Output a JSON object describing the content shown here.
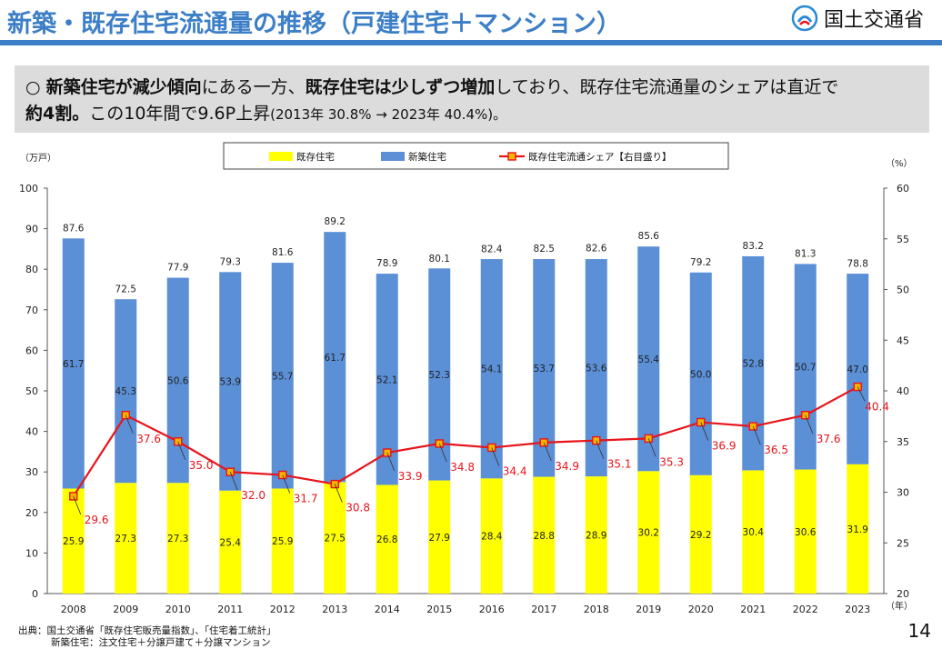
{
  "header": {
    "title": "新築・既存住宅流通量の推移（戸建住宅＋マンション）",
    "logo_text": "国土交通省"
  },
  "summary": {
    "bullet": "○",
    "p1": "新築住宅が減少傾向",
    "p2": "にある一方、",
    "p3": "既存住宅は少しずつ増加",
    "p4": "しており、既存住宅流通量のシェアは直近で",
    "p5": "約4割。",
    "p6": "この10年間で9.6P上昇",
    "p7": "(2013年 30.8% → 2023年 40.4%)。"
  },
  "chart_data": {
    "type": "bar",
    "stacked": true,
    "categories": [
      "2008",
      "2009",
      "2010",
      "2011",
      "2012",
      "2013",
      "2014",
      "2015",
      "2016",
      "2017",
      "2018",
      "2019",
      "2020",
      "2021",
      "2022",
      "2023"
    ],
    "series": [
      {
        "name": "既存住宅",
        "color": "#ffff00",
        "values": [
          25.9,
          27.3,
          27.3,
          25.4,
          25.9,
          27.5,
          26.8,
          27.9,
          28.4,
          28.8,
          28.9,
          30.2,
          29.2,
          30.4,
          30.6,
          31.9
        ]
      },
      {
        "name": "新築住宅",
        "color": "#5b8fd6",
        "values": [
          61.7,
          45.3,
          50.6,
          53.9,
          55.7,
          61.7,
          52.1,
          52.3,
          54.1,
          53.7,
          53.6,
          55.4,
          50.0,
          52.8,
          50.7,
          47.0
        ]
      }
    ],
    "totals": [
      87.6,
      72.5,
      77.9,
      79.3,
      81.6,
      89.2,
      78.9,
      80.1,
      82.4,
      82.5,
      82.6,
      85.6,
      79.2,
      83.2,
      81.3,
      78.8
    ],
    "line": {
      "name": "既存住宅流通シェア【右目盛り】",
      "color": "#e8141b",
      "values": [
        29.6,
        37.6,
        35.0,
        32.0,
        31.7,
        30.8,
        33.9,
        34.8,
        34.4,
        34.9,
        35.1,
        35.3,
        36.9,
        36.5,
        37.6,
        40.4
      ]
    },
    "left_unit": "（万戸）",
    "right_unit": "（%）",
    "x_unit": "（年）",
    "ylim": [
      0,
      100
    ],
    "y_ticks": [
      "0",
      "10",
      "20",
      "30",
      "40",
      "50",
      "60",
      "70",
      "80",
      "90",
      "100"
    ],
    "y2lim": [
      20,
      60
    ],
    "y2_ticks": [
      "20",
      "25",
      "30",
      "35",
      "40",
      "45",
      "50",
      "55",
      "60"
    ],
    "legend_position": "top-center"
  },
  "footer": {
    "source_line1": "出典：国土交通省「既存住宅販売量指数」、「住宅着工統計」",
    "source_line2": "新築住宅：注文住宅＋分譲戸建て＋分譲マンション",
    "page_number": "14"
  }
}
